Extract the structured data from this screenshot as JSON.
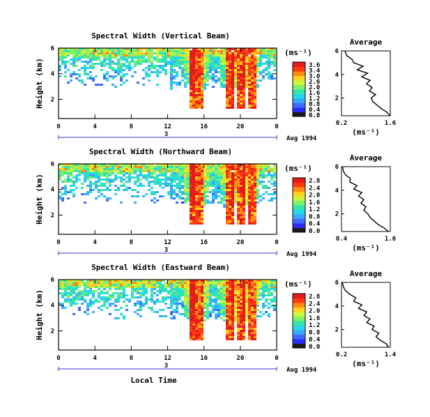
{
  "chart_data": [
    {
      "type": "heatmap",
      "title": "Spectral Width (Vertical Beam)",
      "ylabel": "Height (km)",
      "xlabel": "",
      "x_ticks": [
        "0",
        "4",
        "8",
        "12",
        "16",
        "20",
        "0"
      ],
      "x_range_hours": [
        0,
        24
      ],
      "y_ticks": [
        "2",
        "4",
        "6"
      ],
      "y_range_km": [
        0.5,
        6.0
      ],
      "date_tick": "3",
      "date_label": "Aug 1994",
      "colorbar": {
        "unit": "(ms⁻¹)",
        "ticks": [
          "3.6",
          "3.4",
          "3.0",
          "2.6",
          "2.0",
          "1.6",
          "1.2",
          "0.8",
          "0.4",
          "0.0"
        ],
        "colors": [
          "#1a1a1a",
          "#2c2cff",
          "#3e6bff",
          "#39a8ff",
          "#27d6e8",
          "#34e6a8",
          "#7ef06a",
          "#cdf53a",
          "#ffd21f",
          "#ff8a14",
          "#ff3a10",
          "#e21b1b"
        ]
      },
      "profile": {
        "title": "Average",
        "xlabel": "(ms⁻¹)",
        "x_ticks": [
          "0.2",
          "1.6"
        ],
        "x_range": [
          0.2,
          1.6
        ],
        "y_range": [
          0.5,
          6.0
        ],
        "y_ticks": [
          "2",
          "4",
          "6"
        ],
        "heights": [
          0.5,
          0.8,
          1.1,
          1.4,
          1.7,
          2.0,
          2.3,
          2.6,
          2.9,
          3.2,
          3.5,
          3.8,
          4.1,
          4.4,
          4.7,
          5.0,
          5.3,
          5.6,
          6.0
        ],
        "values": [
          1.6,
          1.5,
          1.35,
          1.22,
          1.1,
          1.05,
          1.18,
          1.0,
          1.08,
          0.92,
          1.02,
          0.78,
          0.95,
          0.65,
          0.82,
          0.55,
          0.5,
          0.35,
          0.3
        ]
      }
    },
    {
      "type": "heatmap",
      "title": "Spectral Width (Northward Beam)",
      "ylabel": "Height (km)",
      "xlabel": "",
      "x_ticks": [
        "0",
        "4",
        "8",
        "12",
        "16",
        "20",
        "0"
      ],
      "x_range_hours": [
        0,
        24
      ],
      "y_ticks": [
        "2",
        "4",
        "6"
      ],
      "y_range_km": [
        0.5,
        6.0
      ],
      "date_tick": "3",
      "date_label": "Aug 1994",
      "colorbar": {
        "unit": "(ms⁻¹)",
        "ticks": [
          "2.8",
          "2.4",
          "2.0",
          "1.6",
          "1.2",
          "0.8",
          "0.4",
          "0.0"
        ],
        "colors": [
          "#1a1a1a",
          "#2c2cff",
          "#3e6bff",
          "#39a8ff",
          "#27d6e8",
          "#34e6a8",
          "#7ef06a",
          "#cdf53a",
          "#ffd21f",
          "#ff8a14",
          "#ff3a10",
          "#e21b1b"
        ]
      },
      "profile": {
        "title": "Average",
        "xlabel": "(ms⁻¹)",
        "x_ticks": [
          "0.4",
          "1.6"
        ],
        "x_range": [
          0.4,
          1.6
        ],
        "y_range": [
          0.5,
          6.0
        ],
        "y_ticks": [
          "2",
          "4",
          "6"
        ],
        "heights": [
          0.5,
          0.8,
          1.1,
          1.4,
          1.7,
          2.0,
          2.3,
          2.6,
          2.9,
          3.2,
          3.5,
          3.8,
          4.1,
          4.4,
          4.7,
          5.0,
          5.3,
          5.6,
          6.0
        ],
        "values": [
          1.55,
          1.45,
          1.3,
          1.2,
          1.1,
          1.05,
          0.95,
          1.0,
          0.88,
          0.95,
          0.82,
          0.9,
          0.7,
          0.78,
          0.6,
          0.62,
          0.5,
          0.45,
          0.42
        ]
      }
    },
    {
      "type": "heatmap",
      "title": "Spectral Width (Eastward Beam)",
      "ylabel": "Height (km)",
      "xlabel": "Local Time",
      "x_ticks": [
        "0",
        "4",
        "8",
        "12",
        "16",
        "20",
        "0"
      ],
      "x_range_hours": [
        0,
        24
      ],
      "y_ticks": [
        "2",
        "4",
        "6"
      ],
      "y_range_km": [
        0.5,
        6.0
      ],
      "date_tick": "3",
      "date_label": "Aug 1994",
      "colorbar": {
        "unit": "(ms⁻¹)",
        "ticks": [
          "2.8",
          "2.4",
          "2.0",
          "1.6",
          "1.2",
          "0.8",
          "0.4",
          "0.0"
        ],
        "colors": [
          "#1a1a1a",
          "#2c2cff",
          "#3e6bff",
          "#39a8ff",
          "#27d6e8",
          "#34e6a8",
          "#7ef06a",
          "#cdf53a",
          "#ffd21f",
          "#ff8a14",
          "#ff3a10",
          "#e21b1b"
        ]
      },
      "profile": {
        "title": "Average",
        "xlabel": "(ms⁻¹)",
        "x_ticks": [
          "0.2",
          "1.4"
        ],
        "x_range": [
          0.2,
          1.4
        ],
        "y_range": [
          0.5,
          6.0
        ],
        "y_ticks": [
          "2",
          "4",
          "6"
        ],
        "heights": [
          0.5,
          0.8,
          1.1,
          1.4,
          1.7,
          2.0,
          2.3,
          2.6,
          2.9,
          3.2,
          3.5,
          3.8,
          4.1,
          4.4,
          4.7,
          5.0,
          5.3,
          5.6,
          6.0
        ],
        "values": [
          1.35,
          1.3,
          1.15,
          1.05,
          1.12,
          0.95,
          1.0,
          0.82,
          0.9,
          0.75,
          0.82,
          0.62,
          0.7,
          0.5,
          0.55,
          0.4,
          0.3,
          0.25,
          0.22
        ]
      }
    }
  ]
}
